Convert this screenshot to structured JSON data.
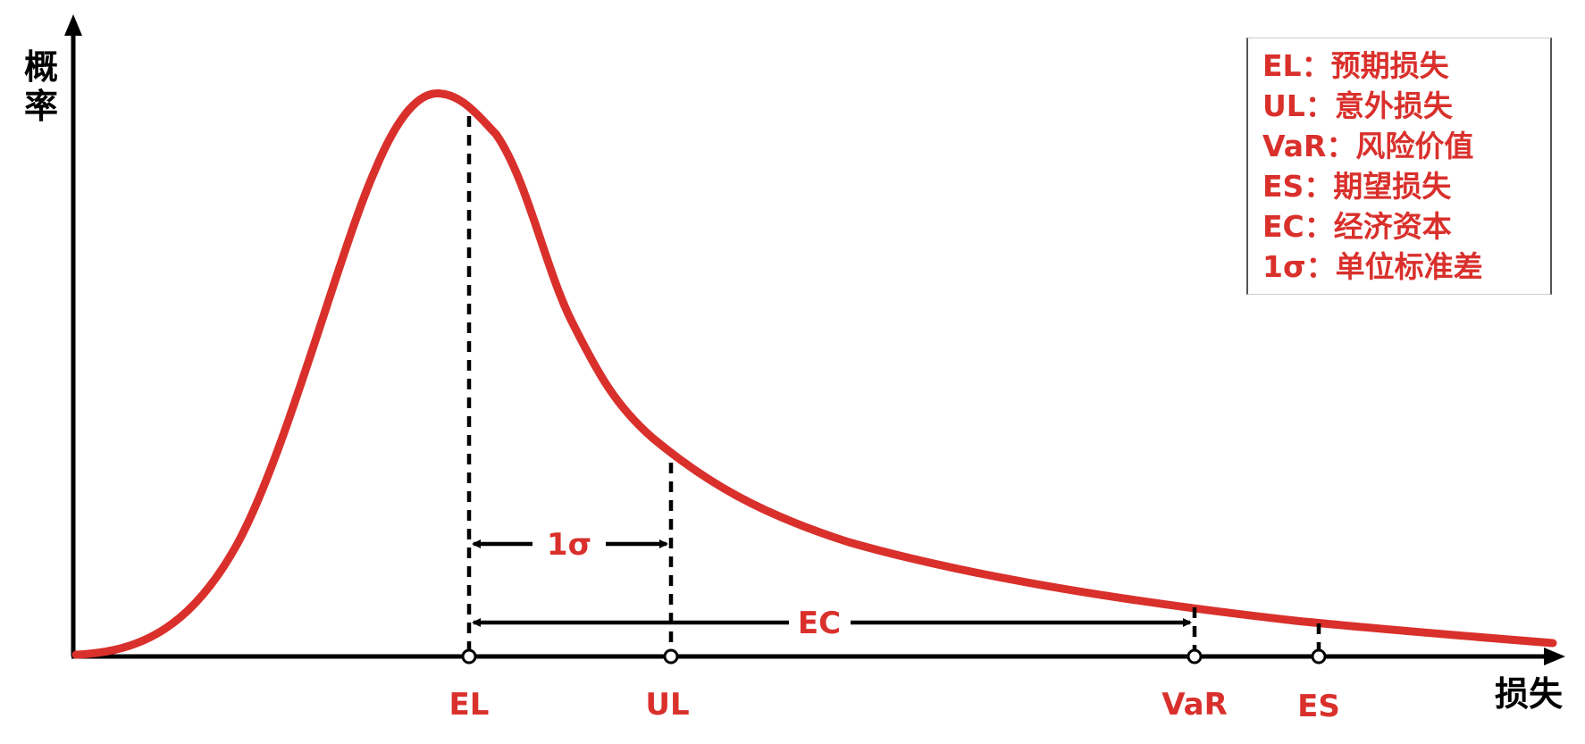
{
  "axes": {
    "y_label_line1": "概",
    "y_label_line2": "率",
    "x_label": "损失"
  },
  "points": [
    {
      "key": "el",
      "label": "EL"
    },
    {
      "key": "ul",
      "label": "UL"
    },
    {
      "key": "var",
      "label": "VaR"
    },
    {
      "key": "es",
      "label": "ES"
    }
  ],
  "spans": {
    "sigma_label": "1σ",
    "ec_label": "EC"
  },
  "legend": [
    "EL：预期损失",
    "UL：意外损失",
    "VaR：风险价值",
    "ES：期望损失",
    "EC：经济资本",
    "1σ：单位标准差"
  ],
  "colors": {
    "curve": "#d9302c",
    "text_accent": "#d9302c",
    "axis": "#000000"
  }
}
